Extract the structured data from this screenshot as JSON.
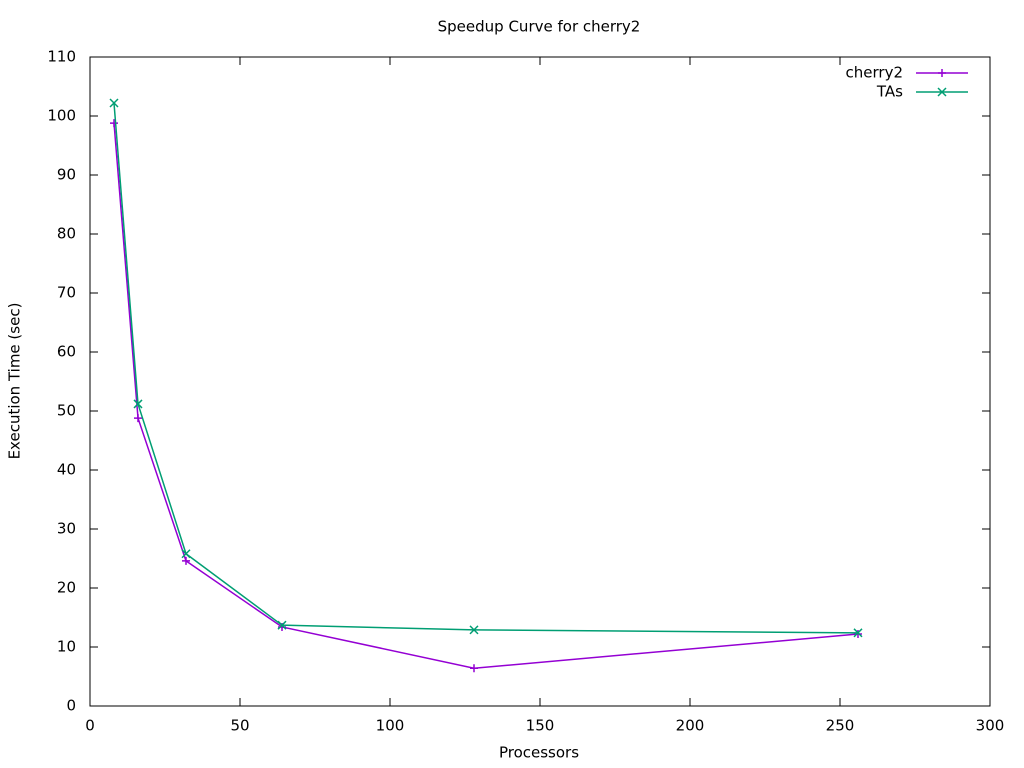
{
  "chart_data": {
    "type": "line",
    "title": "Speedup Curve for cherry2",
    "x_label": "Processors",
    "y_label": "Execution Time (sec)",
    "x": [
      8,
      16,
      32,
      64,
      128,
      256
    ],
    "series": [
      {
        "name": "cherry2",
        "color": "#9400d3",
        "marker": "plus",
        "values": [
          98.8,
          48.8,
          24.6,
          13.4,
          6.4,
          12.2
        ]
      },
      {
        "name": "TAs",
        "color": "#009e73",
        "marker": "cross",
        "values": [
          102.2,
          51.2,
          25.8,
          13.7,
          12.9,
          12.4
        ]
      }
    ],
    "xlim": [
      0,
      300
    ],
    "xticks": [
      0,
      50,
      100,
      150,
      200,
      250,
      300
    ],
    "ylim": [
      0,
      110
    ],
    "yticks": [
      0,
      10,
      20,
      30,
      40,
      50,
      60,
      70,
      80,
      90,
      100,
      110
    ],
    "grid": false,
    "legend": "top-right"
  }
}
